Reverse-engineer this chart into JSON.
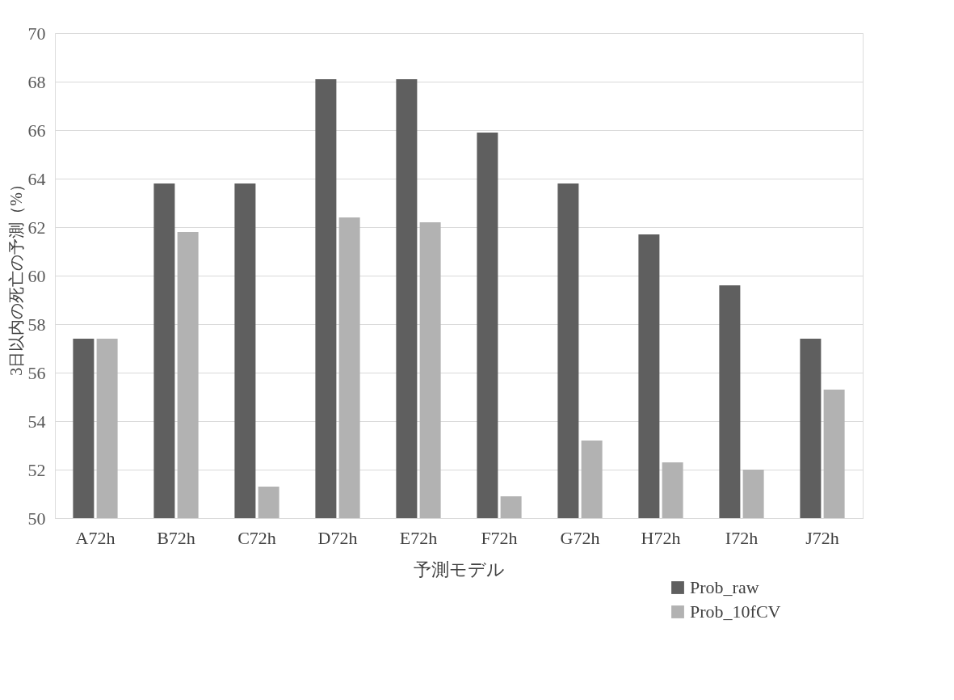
{
  "chart_data": {
    "type": "bar",
    "xlabel": "予測モデル",
    "ylabel": "3日以内の死亡の予測（%）",
    "categories": [
      "A72h",
      "B72h",
      "C72h",
      "D72h",
      "E72h",
      "F72h",
      "G72h",
      "H72h",
      "I72h",
      "J72h"
    ],
    "series": [
      {
        "name": "Prob_raw",
        "color": "#5f5f5f",
        "values": [
          57.4,
          63.8,
          63.8,
          68.1,
          68.1,
          65.9,
          63.8,
          61.7,
          59.6,
          57.4
        ]
      },
      {
        "name": "Prob_10fCV",
        "color": "#b2b2b2",
        "values": [
          57.4,
          61.8,
          51.3,
          62.4,
          62.2,
          50.9,
          53.2,
          52.3,
          52.0,
          55.3
        ]
      }
    ],
    "ylim": [
      50,
      70
    ],
    "yticks": [
      50,
      52,
      54,
      56,
      58,
      60,
      62,
      64,
      66,
      68,
      70
    ],
    "grid": "y",
    "legend": "bottom right"
  }
}
